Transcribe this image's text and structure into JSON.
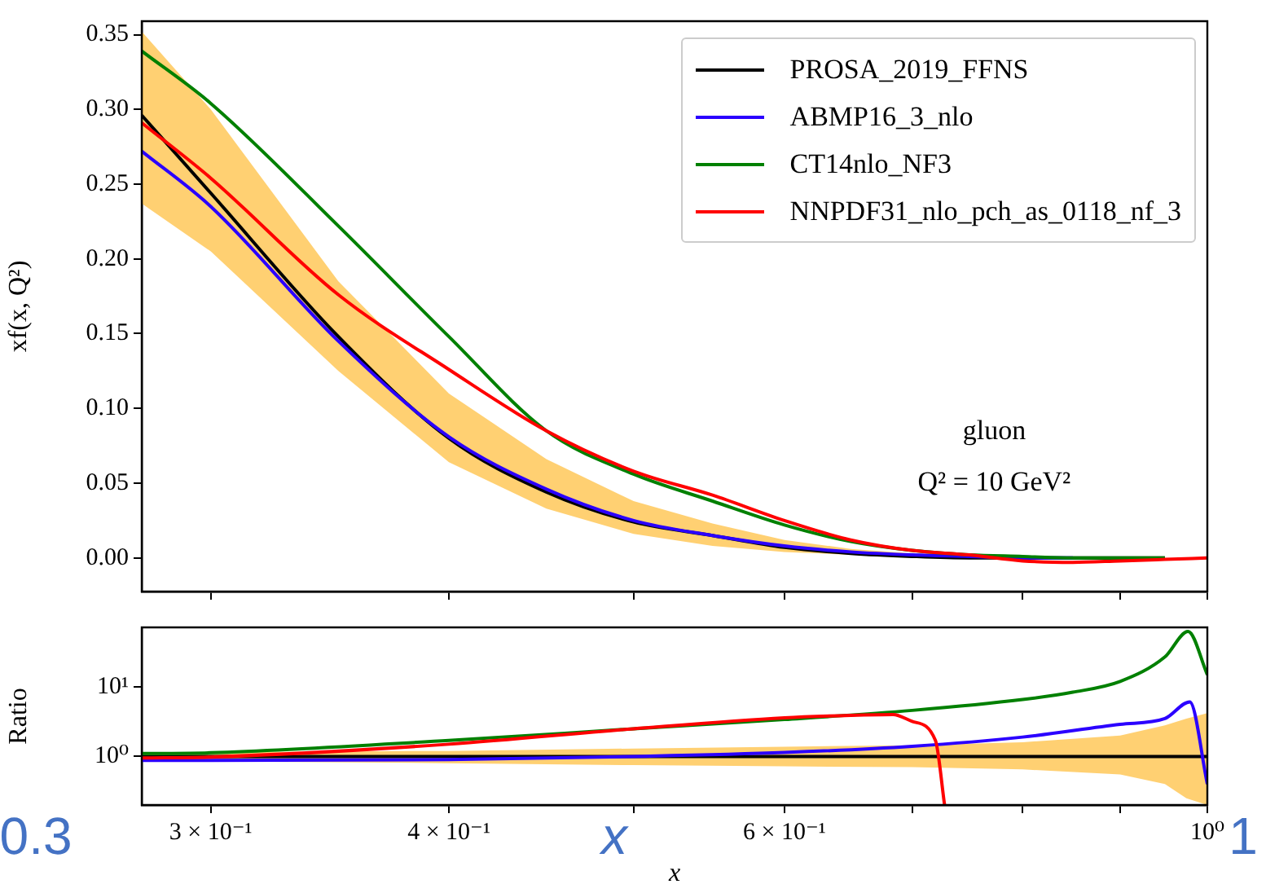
{
  "chart_data": [
    {
      "type": "line",
      "ylabel": "xf(x, Q²)",
      "log": "x",
      "grid": false,
      "legend": "top right",
      "tick_labels": "y",
      "annotations": [
        "gluon",
        "Q² = 10 GeV²"
      ],
      "xlim": [
        0.276,
        1
      ],
      "xticks": [
        {
          "value": 0.3,
          "label": null
        },
        {
          "value": 0.4,
          "label": null
        },
        {
          "value": 0.5,
          "label": null
        },
        {
          "value": 0.6,
          "label": null
        },
        {
          "value": 0.7,
          "label": null
        },
        {
          "value": 0.8,
          "label": null
        },
        {
          "value": 0.9,
          "label": null
        },
        {
          "value": 1,
          "label": null
        }
      ],
      "ylim": [
        -0.0225,
        0.359
      ],
      "yticks": [
        {
          "value": 0,
          "label": "0.00"
        },
        0.05,
        {
          "value": 0.1,
          "label": "0.10"
        },
        0.15,
        {
          "value": 0.2,
          "label": "0.20"
        },
        0.25,
        {
          "value": 0.3,
          "label": "0.30"
        },
        0.35
      ],
      "x": [
        0.276,
        0.3,
        0.35,
        0.4,
        0.45,
        0.5,
        0.55,
        0.6,
        0.65,
        0.7,
        0.75,
        0.8,
        0.85,
        0.9,
        0.95,
        1.0
      ],
      "series": [
        {
          "name": "PROSA_2019_FFNS",
          "color": "#000000",
          "values": [
            0.296,
            0.244,
            0.148,
            0.08,
            0.044,
            0.024,
            0.015,
            0.007,
            0.003,
            0.001,
            0,
            0,
            0,
            0,
            0,
            null
          ],
          "lower": [
            0.237,
            0.205,
            0.125,
            0.064,
            0.033,
            0.016,
            0.008,
            0.004,
            0.002,
            0.001,
            0,
            0,
            0,
            0,
            0,
            0
          ],
          "upper": [
            0.352,
            0.3,
            0.185,
            0.11,
            0.066,
            0.038,
            0.023,
            0.012,
            0.006,
            0.003,
            0.001,
            0,
            0,
            0,
            0,
            0
          ]
        },
        {
          "name": "ABMP16_3_nlo",
          "color": "#2b00ff",
          "values": [
            0.272,
            0.235,
            0.145,
            0.081,
            0.046,
            0.025,
            0.015,
            0.008,
            0.004,
            0.002,
            0.001,
            0,
            0,
            null,
            null,
            null
          ]
        },
        {
          "name": "CT14nlo_NF3",
          "color": "#008000",
          "values": [
            0.339,
            0.304,
            0.222,
            0.148,
            0.085,
            0.056,
            0.038,
            0.022,
            0.011,
            0.005,
            0.002,
            0.001,
            0,
            0,
            0,
            null
          ]
        },
        {
          "name": "NNPDF31_nlo_pch_as_0118_nf_3",
          "color": "#ff0000",
          "values": [
            0.291,
            0.254,
            0.176,
            0.126,
            0.085,
            0.058,
            0.042,
            0.025,
            0.012,
            0.005,
            0.002,
            -0.002,
            -0.003,
            -0.002,
            -0.001,
            0
          ]
        }
      ]
    },
    {
      "type": "line",
      "ylabel": "Ratio",
      "xlabel": "x",
      "log": "xy",
      "grid": false,
      "annotations": [
        "0.3",
        "x",
        "1"
      ],
      "xlim": [
        0.276,
        1
      ],
      "xticks": [
        {
          "value": 0.3,
          "label": "3 × 10⁻¹"
        },
        {
          "value": 0.4,
          "label": "4 × 10⁻¹"
        },
        {
          "value": 0.5,
          "label": null
        },
        {
          "value": 0.6,
          "label": "6 × 10⁻¹"
        },
        {
          "value": 0.7,
          "label": null
        },
        {
          "value": 0.8,
          "label": null
        },
        {
          "value": 0.9,
          "label": null
        },
        {
          "value": 1,
          "label": "10⁰"
        }
      ],
      "ylim": [
        0.2,
        72
      ],
      "yticks": [
        {
          "value": 1,
          "label": "10⁰"
        },
        {
          "value": 10,
          "label": "10¹"
        }
      ],
      "series": [
        {
          "color": "#000000",
          "x": [
            0.276,
            0.3,
            0.4,
            0.5,
            0.6,
            0.7,
            0.8,
            0.9,
            0.95,
            0.975,
            1.0
          ],
          "values": [
            1,
            1,
            1,
            1,
            1,
            1,
            1,
            1,
            1,
            1,
            1
          ],
          "lower": [
            0.85,
            0.85,
            0.8,
            0.75,
            0.72,
            0.7,
            0.65,
            0.55,
            0.4,
            0.25,
            0.2
          ],
          "upper": [
            1.15,
            1.15,
            1.2,
            1.3,
            1.38,
            1.45,
            1.6,
            2.0,
            2.8,
            3.5,
            4.2
          ]
        },
        {
          "color": "#2b00ff",
          "x": [
            0.276,
            0.3,
            0.4,
            0.5,
            0.6,
            0.7,
            0.8,
            0.9,
            0.95,
            0.979,
            1.0
          ],
          "values": [
            0.88,
            0.88,
            0.9,
            1.0,
            1.14,
            1.4,
            1.9,
            2.9,
            3.5,
            6.1,
            0.4
          ]
        },
        {
          "color": "#008000",
          "x": [
            0.276,
            0.3,
            0.4,
            0.5,
            0.6,
            0.7,
            0.8,
            0.85,
            0.9,
            0.95,
            0.977,
            1.0
          ],
          "values": [
            1.1,
            1.13,
            1.7,
            2.5,
            3.4,
            4.6,
            6.6,
            8.4,
            12,
            27,
            63,
            15
          ]
        },
        {
          "color": "#ff0000",
          "x": [
            0.276,
            0.3,
            0.4,
            0.5,
            0.6,
            0.65,
            0.684,
            0.7,
            0.72,
            0.728
          ],
          "values": [
            0.95,
            0.98,
            1.5,
            2.5,
            3.6,
            3.9,
            4.0,
            3.2,
            1.7,
            0.2
          ]
        }
      ]
    }
  ]
}
